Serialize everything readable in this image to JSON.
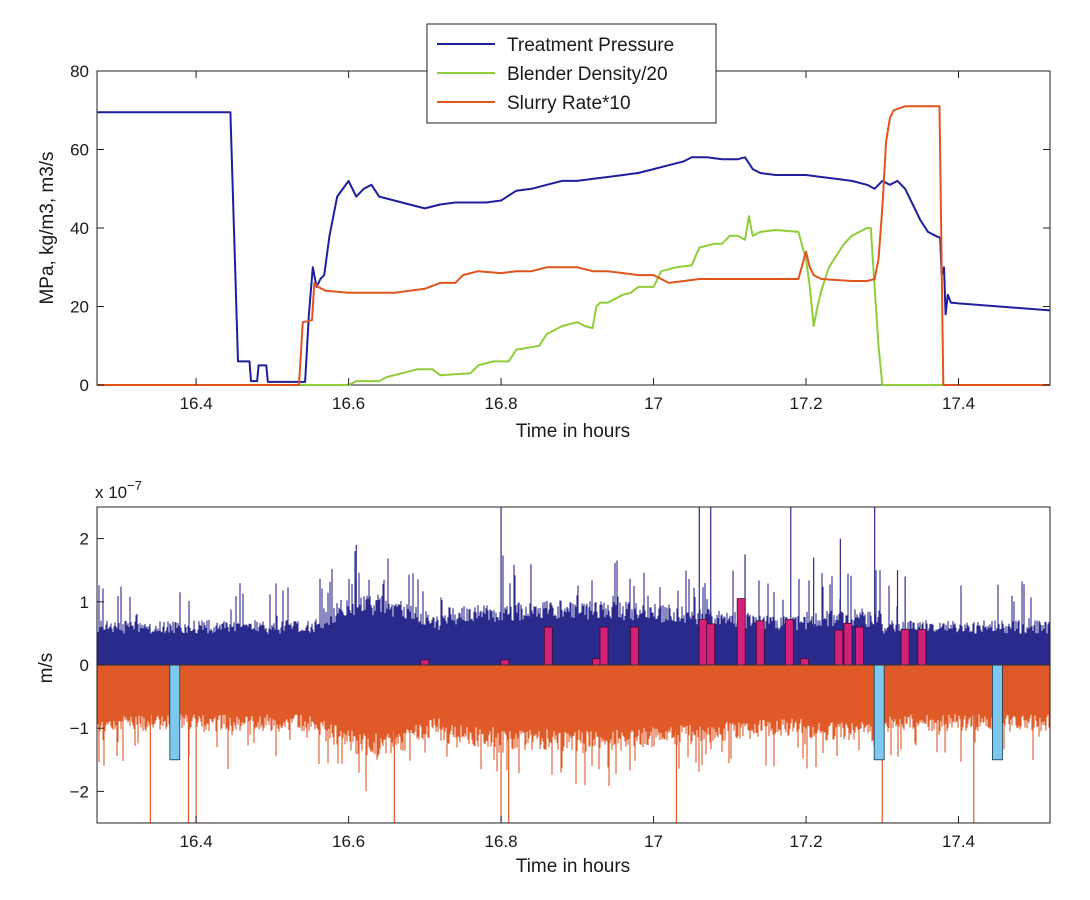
{
  "chart_data": [
    {
      "type": "line",
      "xlabel": "Time in hours",
      "ylabel": "MPa, kg/m3, m3/s",
      "xlim": [
        16.27,
        17.52
      ],
      "ylim": [
        0,
        80
      ],
      "xticks": [
        16.4,
        16.6,
        16.8,
        17,
        17.2,
        17.4
      ],
      "xtick_labels": [
        "16.4",
        "16.6",
        "16.8",
        "17",
        "17.2",
        "17.4"
      ],
      "yticks": [
        0,
        20,
        40,
        60,
        80
      ],
      "ytick_labels": [
        "0",
        "20",
        "40",
        "60",
        "80"
      ],
      "legend_position": "top-center",
      "grid": false,
      "series": [
        {
          "name": "Treatment Pressure",
          "color": "#1f1f9e",
          "points": [
            [
              16.27,
              69.5
            ],
            [
              16.445,
              69.5
            ],
            [
              16.455,
              6
            ],
            [
              16.47,
              6
            ],
            [
              16.472,
              1
            ],
            [
              16.48,
              1
            ],
            [
              16.482,
              5
            ],
            [
              16.492,
              5
            ],
            [
              16.494,
              0.8
            ],
            [
              16.52,
              0.8
            ],
            [
              16.543,
              0.8
            ],
            [
              16.548,
              18
            ],
            [
              16.553,
              30
            ],
            [
              16.558,
              25
            ],
            [
              16.563,
              27
            ],
            [
              16.568,
              28
            ],
            [
              16.575,
              38
            ],
            [
              16.585,
              48
            ],
            [
              16.6,
              52
            ],
            [
              16.61,
              48
            ],
            [
              16.62,
              50
            ],
            [
              16.63,
              51
            ],
            [
              16.64,
              48
            ],
            [
              16.66,
              47
            ],
            [
              16.68,
              46
            ],
            [
              16.7,
              45
            ],
            [
              16.72,
              46
            ],
            [
              16.74,
              46.5
            ],
            [
              16.76,
              46.5
            ],
            [
              16.78,
              46.5
            ],
            [
              16.8,
              47
            ],
            [
              16.82,
              49.5
            ],
            [
              16.84,
              50
            ],
            [
              16.86,
              51
            ],
            [
              16.88,
              52
            ],
            [
              16.9,
              52
            ],
            [
              16.92,
              52.5
            ],
            [
              16.94,
              53
            ],
            [
              16.96,
              53.5
            ],
            [
              16.98,
              54
            ],
            [
              17.0,
              55
            ],
            [
              17.02,
              56
            ],
            [
              17.04,
              57
            ],
            [
              17.05,
              58
            ],
            [
              17.07,
              58
            ],
            [
              17.09,
              57.5
            ],
            [
              17.11,
              57.5
            ],
            [
              17.12,
              58
            ],
            [
              17.13,
              55
            ],
            [
              17.14,
              54
            ],
            [
              17.16,
              53.5
            ],
            [
              17.18,
              53.5
            ],
            [
              17.2,
              53.5
            ],
            [
              17.22,
              53
            ],
            [
              17.24,
              52.5
            ],
            [
              17.26,
              52
            ],
            [
              17.28,
              51
            ],
            [
              17.29,
              50
            ],
            [
              17.3,
              52
            ],
            [
              17.31,
              51
            ],
            [
              17.32,
              52
            ],
            [
              17.33,
              50
            ],
            [
              17.34,
              46
            ],
            [
              17.35,
              42
            ],
            [
              17.36,
              39
            ],
            [
              17.37,
              38
            ],
            [
              17.376,
              37.5
            ],
            [
              17.378,
              28
            ],
            [
              17.381,
              30
            ],
            [
              17.383,
              18
            ],
            [
              17.386,
              23
            ],
            [
              17.39,
              21
            ],
            [
              17.4,
              20.8
            ],
            [
              17.52,
              19
            ]
          ]
        },
        {
          "name": "Blender Density/20",
          "color": "#8fce3a",
          "points": [
            [
              16.27,
              0
            ],
            [
              16.6,
              0
            ],
            [
              16.61,
              1
            ],
            [
              16.64,
              1
            ],
            [
              16.65,
              2
            ],
            [
              16.67,
              3
            ],
            [
              16.69,
              4
            ],
            [
              16.7,
              4
            ],
            [
              16.71,
              4
            ],
            [
              16.72,
              2.5
            ],
            [
              16.76,
              3
            ],
            [
              16.77,
              5
            ],
            [
              16.79,
              6
            ],
            [
              16.8,
              6
            ],
            [
              16.81,
              6
            ],
            [
              16.82,
              9
            ],
            [
              16.85,
              10
            ],
            [
              16.86,
              13
            ],
            [
              16.88,
              15
            ],
            [
              16.9,
              16
            ],
            [
              16.91,
              15
            ],
            [
              16.92,
              14.5
            ],
            [
              16.925,
              20
            ],
            [
              16.93,
              21
            ],
            [
              16.94,
              21
            ],
            [
              16.95,
              22
            ],
            [
              16.96,
              23
            ],
            [
              16.97,
              23.5
            ],
            [
              16.98,
              25
            ],
            [
              16.99,
              25
            ],
            [
              17.0,
              25
            ],
            [
              17.01,
              29
            ],
            [
              17.03,
              30
            ],
            [
              17.05,
              30.5
            ],
            [
              17.06,
              35
            ],
            [
              17.08,
              36
            ],
            [
              17.09,
              36
            ],
            [
              17.1,
              38
            ],
            [
              17.11,
              38
            ],
            [
              17.12,
              37
            ],
            [
              17.125,
              43
            ],
            [
              17.13,
              38
            ],
            [
              17.14,
              39
            ],
            [
              17.16,
              39.5
            ],
            [
              17.19,
              39
            ],
            [
              17.2,
              32
            ],
            [
              17.205,
              25
            ],
            [
              17.21,
              15
            ],
            [
              17.215,
              20
            ],
            [
              17.22,
              24
            ],
            [
              17.23,
              30
            ],
            [
              17.25,
              36
            ],
            [
              17.26,
              38
            ],
            [
              17.28,
              40
            ],
            [
              17.285,
              40
            ],
            [
              17.29,
              25
            ],
            [
              17.295,
              10
            ],
            [
              17.3,
              0
            ],
            [
              17.52,
              0
            ]
          ]
        },
        {
          "name": "Slurry Rate*10",
          "color": "#e2541d",
          "points": [
            [
              16.27,
              0
            ],
            [
              16.535,
              0
            ],
            [
              16.54,
              16
            ],
            [
              16.552,
              16.5
            ],
            [
              16.555,
              26
            ],
            [
              16.56,
              25
            ],
            [
              16.57,
              24
            ],
            [
              16.6,
              23.5
            ],
            [
              16.64,
              23.5
            ],
            [
              16.66,
              23.5
            ],
            [
              16.68,
              24
            ],
            [
              16.7,
              24.5
            ],
            [
              16.72,
              26
            ],
            [
              16.74,
              26
            ],
            [
              16.75,
              28
            ],
            [
              16.77,
              29
            ],
            [
              16.8,
              28.5
            ],
            [
              16.82,
              29
            ],
            [
              16.84,
              29
            ],
            [
              16.86,
              30
            ],
            [
              16.88,
              30
            ],
            [
              16.9,
              30
            ],
            [
              16.92,
              29
            ],
            [
              16.94,
              29
            ],
            [
              16.96,
              28.5
            ],
            [
              16.98,
              28
            ],
            [
              17.0,
              28
            ],
            [
              17.02,
              26
            ],
            [
              17.04,
              26.5
            ],
            [
              17.06,
              27
            ],
            [
              17.08,
              27
            ],
            [
              17.1,
              27
            ],
            [
              17.12,
              27
            ],
            [
              17.14,
              27
            ],
            [
              17.16,
              27
            ],
            [
              17.18,
              27
            ],
            [
              17.19,
              27
            ],
            [
              17.2,
              34
            ],
            [
              17.205,
              30
            ],
            [
              17.21,
              28
            ],
            [
              17.22,
              27
            ],
            [
              17.26,
              26.5
            ],
            [
              17.28,
              26.5
            ],
            [
              17.29,
              27
            ],
            [
              17.295,
              32
            ],
            [
              17.3,
              45
            ],
            [
              17.305,
              62
            ],
            [
              17.31,
              68
            ],
            [
              17.315,
              70
            ],
            [
              17.33,
              71
            ],
            [
              17.35,
              71
            ],
            [
              17.37,
              71
            ],
            [
              17.375,
              71
            ],
            [
              17.38,
              0
            ],
            [
              17.52,
              0
            ]
          ]
        }
      ]
    },
    {
      "type": "bar",
      "xlabel": "Time in hours",
      "ylabel": "m/s",
      "exponent_label": "x 10",
      "exponent_power": "−7",
      "xlim": [
        16.27,
        17.52
      ],
      "ylim": [
        -2.5,
        2.5
      ],
      "xticks": [
        16.4,
        16.6,
        16.8,
        17,
        17.2,
        17.4
      ],
      "xtick_labels": [
        "16.4",
        "16.6",
        "16.8",
        "17",
        "17.2",
        "17.4"
      ],
      "yticks": [
        -2,
        -1,
        0,
        1,
        2
      ],
      "ytick_labels": [
        "−2",
        "−1",
        "0",
        "1",
        "2"
      ],
      "grid": false,
      "noise_colors": {
        "positive": "#2a2a8c",
        "negative": "#e05a28"
      },
      "positive_bars": {
        "color": "#d4207a",
        "items": [
          [
            16.7,
            0.08
          ],
          [
            16.805,
            0.08
          ],
          [
            16.862,
            0.6
          ],
          [
            16.925,
            0.1
          ],
          [
            16.935,
            0.6
          ],
          [
            16.975,
            0.6
          ],
          [
            17.065,
            0.72
          ],
          [
            17.075,
            0.65
          ],
          [
            17.115,
            1.05
          ],
          [
            17.14,
            0.7
          ],
          [
            17.178,
            0.72
          ],
          [
            17.198,
            0.1
          ],
          [
            17.243,
            0.55
          ],
          [
            17.255,
            0.66
          ],
          [
            17.27,
            0.6
          ],
          [
            17.33,
            0.56
          ],
          [
            17.352,
            0.56
          ]
        ]
      },
      "negative_bars": {
        "color": "#7cc8ee",
        "items": [
          [
            16.372,
            -1.5
          ],
          [
            17.296,
            -1.5
          ],
          [
            17.451,
            -1.5
          ]
        ]
      }
    }
  ]
}
